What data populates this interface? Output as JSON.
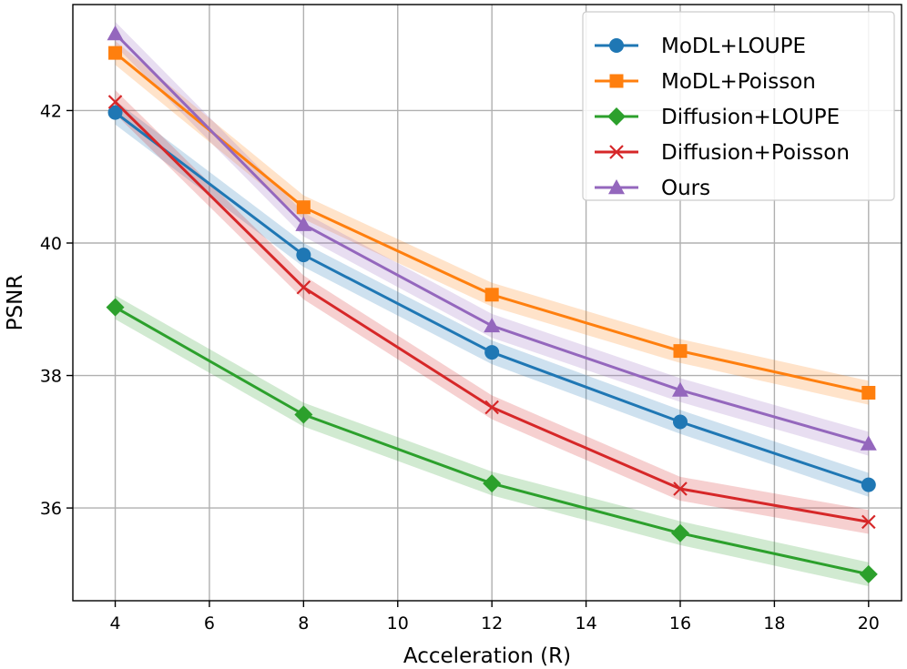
{
  "chart_data": {
    "type": "line",
    "title": "",
    "xlabel": "Acceleration (R)",
    "ylabel": "PSNR",
    "x": [
      4,
      8,
      12,
      16,
      20
    ],
    "xlim": [
      3.1,
      20.7
    ],
    "ylim": [
      34.6,
      43.6
    ],
    "xticks": [
      4,
      6,
      8,
      10,
      12,
      14,
      16,
      18,
      20
    ],
    "yticks": [
      36,
      38,
      40,
      42
    ],
    "grid": true,
    "legend_position": "top-right",
    "band_halfwidth": 0.18,
    "series": [
      {
        "name": "MoDL+LOUPE",
        "color": "#1f77b4",
        "marker": "circle",
        "values": [
          41.97,
          39.82,
          38.35,
          37.3,
          36.35
        ]
      },
      {
        "name": "MoDL+Poisson",
        "color": "#ff7f0e",
        "marker": "square",
        "values": [
          42.87,
          40.54,
          39.22,
          38.37,
          37.74
        ]
      },
      {
        "name": "Diffusion+LOUPE",
        "color": "#2ca02c",
        "marker": "diamond",
        "values": [
          39.03,
          37.41,
          36.37,
          35.62,
          35.0
        ]
      },
      {
        "name": "Diffusion+Poisson",
        "color": "#d62728",
        "marker": "x",
        "values": [
          42.13,
          39.33,
          37.52,
          36.29,
          35.79
        ]
      },
      {
        "name": "Ours",
        "color": "#9467bd",
        "marker": "triangle",
        "values": [
          43.16,
          40.28,
          38.75,
          37.78,
          36.97
        ]
      }
    ]
  }
}
